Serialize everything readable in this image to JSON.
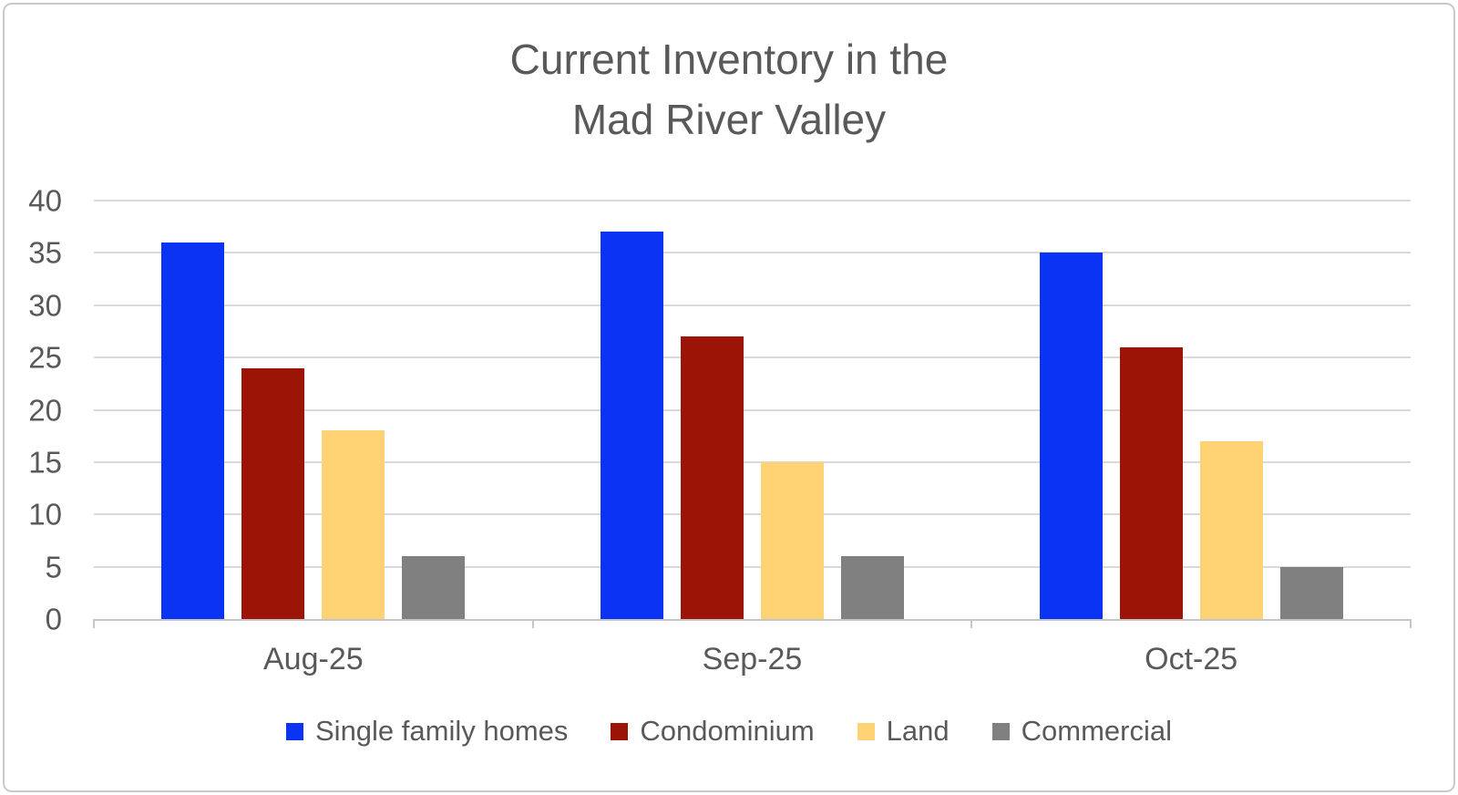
{
  "frame": {
    "background_color": "#ffffff",
    "border_color": "#c9c9c9"
  },
  "title": {
    "line1": "Current Inventory in the",
    "line2": "Mad River Valley",
    "color": "#595959"
  },
  "chart_data": {
    "type": "bar",
    "title": "Current Inventory in the Mad River Valley",
    "categories": [
      "Aug-25",
      "Sep-25",
      "Oct-25"
    ],
    "series": [
      {
        "name": "Single family homes",
        "color": "#0b33f3",
        "values": [
          36,
          37,
          35
        ]
      },
      {
        "name": "Condominium",
        "color": "#9b1406",
        "values": [
          24,
          27,
          26
        ]
      },
      {
        "name": "Land",
        "color": "#ffd374",
        "values": [
          18,
          15,
          17
        ]
      },
      {
        "name": "Commercial",
        "color": "#808080",
        "values": [
          6,
          6,
          5
        ]
      }
    ],
    "xlabel": "",
    "ylabel": "",
    "ylim": [
      0,
      40
    ],
    "yticks": [
      0,
      5,
      10,
      15,
      20,
      25,
      30,
      35,
      40
    ],
    "grid": true,
    "gridline_color": "#d9d9d9",
    "axis_line_color": "#c6c6c6",
    "tick_label_color": "#595959",
    "legend_position": "bottom"
  }
}
